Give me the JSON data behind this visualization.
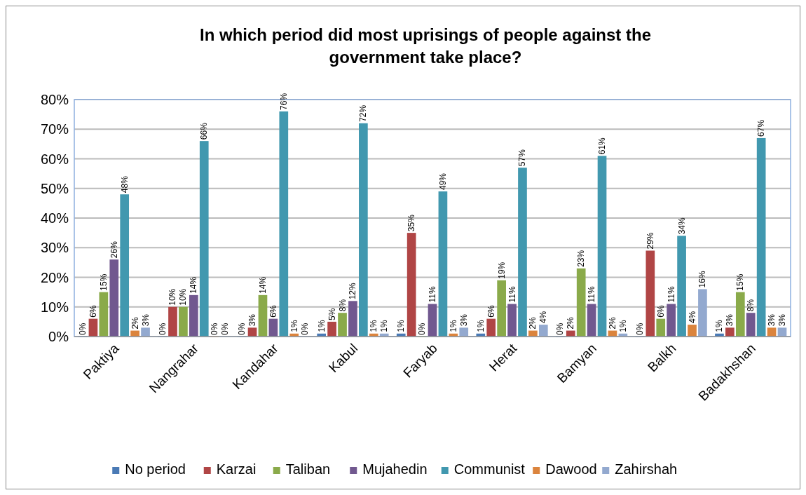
{
  "chart_data": {
    "type": "bar",
    "title": "In which period did most uprisings of people against the government take place?",
    "categories": [
      "Paktiya",
      "Nangrahar",
      "Kandahar",
      "Kabul",
      "Faryab",
      "Herat",
      "Bamyan",
      "Balkh",
      "Badakhshan"
    ],
    "ylim": [
      0,
      80
    ],
    "yticks": [
      {
        "value": 0,
        "label": "0%"
      },
      {
        "value": 10,
        "label": "10%"
      },
      {
        "value": 20,
        "label": "20%"
      },
      {
        "value": 30,
        "label": "30%"
      },
      {
        "value": 40,
        "label": "40%"
      },
      {
        "value": 50,
        "label": "50%"
      },
      {
        "value": 60,
        "label": "60%"
      },
      {
        "value": 70,
        "label": "70%"
      },
      {
        "value": 80,
        "label": "80%"
      }
    ],
    "grid": "y",
    "legend": "bottom",
    "series": [
      {
        "name": "No period",
        "color": "#4a7ab5",
        "values": [
          0,
          0,
          0,
          1,
          1,
          1,
          0,
          0,
          1
        ],
        "value_labels": [
          "0%",
          "0%",
          "0%",
          "1%",
          "1%",
          "1%",
          "0%",
          "0%",
          "1%"
        ]
      },
      {
        "name": "Karzai",
        "color": "#b04545",
        "values": [
          6,
          10,
          3,
          5,
          35,
          6,
          2,
          29,
          3
        ],
        "value_labels": [
          "6%",
          "10%",
          "3%",
          "5%",
          "35%",
          "6%",
          "2%",
          "29%",
          "3%"
        ]
      },
      {
        "name": "Taliban",
        "color": "#8aaa4a",
        "values": [
          15,
          10,
          14,
          8,
          0,
          19,
          23,
          6,
          15
        ],
        "value_labels": [
          "15%",
          "10%",
          "14%",
          "8%",
          "0%",
          "19%",
          "23%",
          "6%",
          "15%"
        ]
      },
      {
        "name": "Mujahedin",
        "color": "#71588f",
        "values": [
          26,
          14,
          6,
          12,
          11,
          11,
          11,
          11,
          8
        ],
        "value_labels": [
          "26%",
          "14%",
          "6%",
          "12%",
          "11%",
          "11%",
          "11%",
          "11%",
          "8%"
        ]
      },
      {
        "name": "Communist",
        "color": "#4198af",
        "values": [
          48,
          66,
          76,
          72,
          49,
          57,
          61,
          34,
          67
        ],
        "value_labels": [
          "48%",
          "66%",
          "76%",
          "72%",
          "49%",
          "57%",
          "61%",
          "34%",
          "67%"
        ]
      },
      {
        "name": "Dawood",
        "color": "#db843d",
        "values": [
          2,
          0,
          1,
          1,
          1,
          2,
          2,
          4,
          3
        ],
        "value_labels": [
          "2%",
          "0%",
          "1%",
          "1%",
          "1%",
          "2%",
          "2%",
          "4%",
          "3%"
        ]
      },
      {
        "name": "Zahirshah",
        "color": "#93a9cf",
        "values": [
          3,
          0,
          0,
          1,
          3,
          4,
          1,
          16,
          3
        ],
        "value_labels": [
          "3%",
          "0%",
          "0%",
          "1%",
          "3%",
          "4%",
          "1%",
          "16%",
          "3%"
        ]
      }
    ]
  }
}
